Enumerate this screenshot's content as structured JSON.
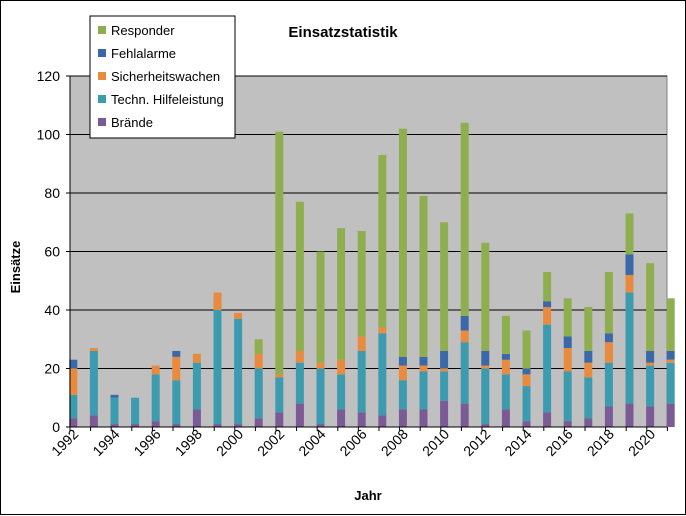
{
  "chart_data": {
    "type": "bar",
    "stacked": true,
    "title": "Einsatzstatistik",
    "xlabel": "Jahr",
    "ylabel": "Einsätze",
    "ylim": [
      0,
      120
    ],
    "yticks": [
      0,
      20,
      40,
      60,
      80,
      100,
      120
    ],
    "grid": true,
    "legend_position": "top-left",
    "x_tick_labels": [
      "1992",
      "1994",
      "1996",
      "1998",
      "2000",
      "2002",
      "2004",
      "2006",
      "2008",
      "2010",
      "2012",
      "2014",
      "2016",
      "2018",
      "2020"
    ],
    "categories": [
      "1992",
      "1993",
      "1994",
      "1995",
      "1996",
      "1997",
      "1998",
      "1999",
      "2000",
      "2001",
      "2002",
      "2003",
      "2004",
      "2005",
      "2006",
      "2007",
      "2008",
      "2009",
      "2010",
      "2011",
      "2012",
      "2013",
      "2014",
      "2015",
      "2016",
      "2017",
      "2018",
      "2019",
      "2020",
      "2021"
    ],
    "series": [
      {
        "name": "Brände",
        "color": "#7b5b95",
        "values": [
          3,
          4,
          1,
          1,
          2,
          1,
          6,
          1,
          1,
          3,
          5,
          8,
          1,
          6,
          5,
          4,
          6,
          6,
          9,
          8,
          1,
          6,
          2,
          5,
          2,
          3,
          7,
          8,
          7,
          8
        ]
      },
      {
        "name": "Techn.  Hilfeleistung",
        "color": "#3d9bb0",
        "values": [
          8,
          22,
          9,
          9,
          16,
          15,
          16,
          39,
          36,
          17,
          12,
          14,
          19,
          12,
          21,
          28,
          10,
          13,
          10,
          21,
          19,
          12,
          12,
          30,
          17,
          14,
          15,
          38,
          14,
          14
        ]
      },
      {
        "name": "Sicherheitswachen",
        "color": "#e98b3e",
        "values": [
          9,
          1,
          0,
          0,
          3,
          8,
          3,
          6,
          2,
          5,
          1,
          4,
          2,
          5,
          5,
          2,
          5,
          2,
          1,
          4,
          1,
          5,
          4,
          6,
          8,
          5,
          7,
          6,
          1,
          1
        ]
      },
      {
        "name": "Fehlalarme",
        "color": "#3a68a8",
        "values": [
          3,
          0,
          1,
          0,
          0,
          2,
          0,
          0,
          0,
          0,
          0,
          0,
          0,
          0,
          0,
          0,
          3,
          3,
          6,
          5,
          5,
          2,
          2,
          2,
          4,
          4,
          3,
          7,
          4,
          3
        ]
      },
      {
        "name": "Responder",
        "color": "#8fae4f",
        "values": [
          0,
          0,
          0,
          0,
          0,
          0,
          0,
          0,
          0,
          5,
          83,
          51,
          38,
          45,
          36,
          59,
          78,
          55,
          44,
          66,
          37,
          13,
          13,
          10,
          13,
          15,
          21,
          14,
          30,
          18
        ]
      }
    ]
  }
}
